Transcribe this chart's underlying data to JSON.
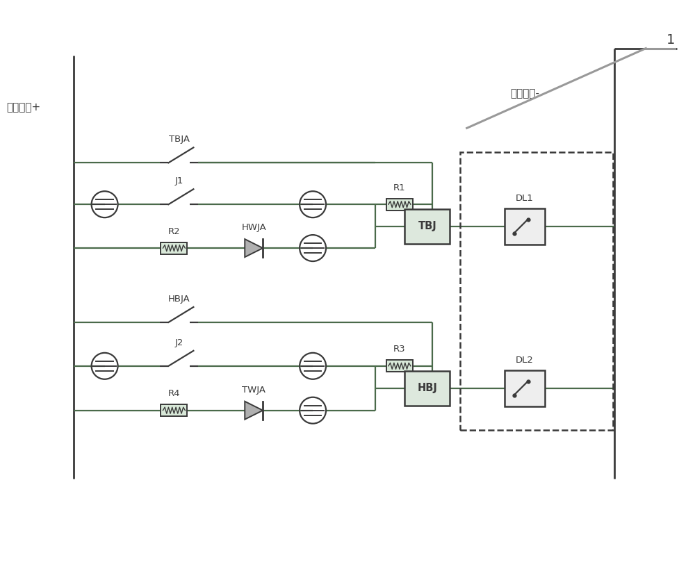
{
  "bg_color": "#ffffff",
  "line_color": "#3a3a3a",
  "circuit_color": "#4a6a4a",
  "gray_color": "#888888",
  "dashed_color": "#3a3a3a",
  "box_fill": "#e0e8e0",
  "dl_fill": "#f0f0f0",
  "label_plus": "操作电源+",
  "label_minus": "操作电源-",
  "label_1": "1",
  "labels": {
    "TBJA": "TBJA",
    "J1": "J1",
    "R2": "R2",
    "HWJA": "HWJA",
    "R1": "R1",
    "TBJ": "TBJ",
    "DL1": "DL1",
    "HBJA": "HBJA",
    "J2": "J2",
    "R4": "R4",
    "TWJA": "TWJA",
    "R3": "R3",
    "HBJ": "HBJ",
    "DL2": "DL2"
  },
  "figsize": [
    10.0,
    8.19
  ],
  "dpi": 100
}
